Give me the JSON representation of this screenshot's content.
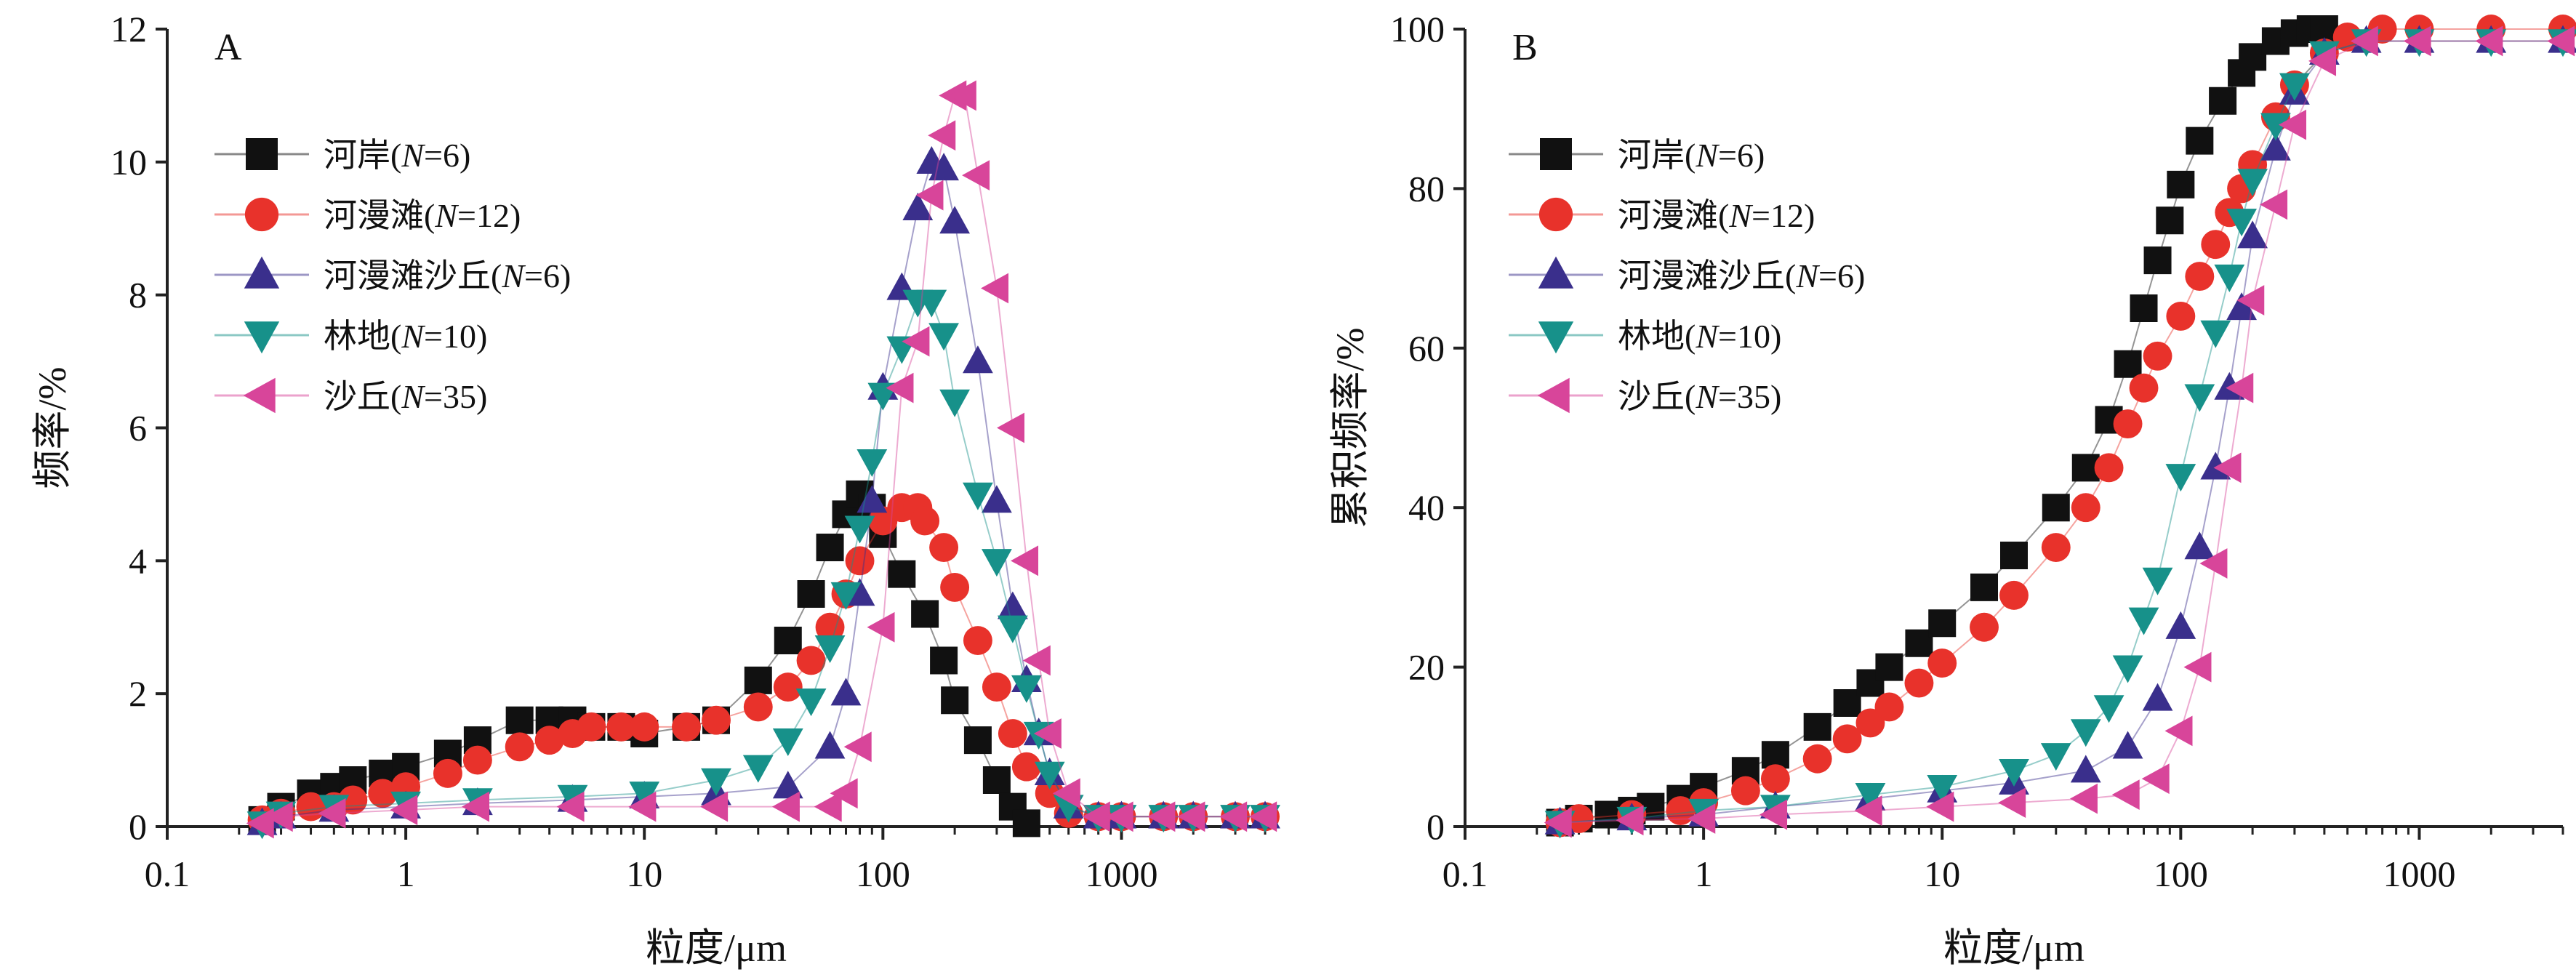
{
  "chart_data": [
    {
      "type": "scatter",
      "panel_label": "A",
      "xlabel": "粒度/μm",
      "ylabel": "频率/%",
      "x_scale": "log",
      "xlim": [
        0.1,
        4000
      ],
      "ylim": [
        0,
        12
      ],
      "x_ticks": [
        "0.1",
        "1",
        "10",
        "100",
        "1000"
      ],
      "y_ticks": [
        "0",
        "2",
        "4",
        "6",
        "8",
        "10",
        "12"
      ],
      "legend_position": "top-left",
      "series": [
        {
          "name": "河岸",
          "n": "6",
          "x": [
            0.25,
            0.3,
            0.4,
            0.5,
            0.6,
            0.8,
            1,
            1.5,
            2,
            3,
            4,
            5,
            6,
            8,
            10,
            15,
            20,
            30,
            40,
            50,
            60,
            70,
            80,
            90,
            100,
            120,
            150,
            180,
            200,
            250,
            300,
            350,
            400
          ],
          "values": [
            0.1,
            0.3,
            0.5,
            0.6,
            0.7,
            0.8,
            0.9,
            1.1,
            1.3,
            1.6,
            1.6,
            1.6,
            1.5,
            1.5,
            1.4,
            1.5,
            1.6,
            2.2,
            2.8,
            3.5,
            4.2,
            4.7,
            5.0,
            4.8,
            4.4,
            3.8,
            3.2,
            2.5,
            1.9,
            1.3,
            0.7,
            0.3,
            0.05
          ]
        },
        {
          "name": "河漫滩",
          "n": "12",
          "x": [
            0.25,
            0.3,
            0.4,
            0.5,
            0.6,
            0.8,
            1,
            1.5,
            2,
            3,
            4,
            5,
            6,
            8,
            10,
            15,
            20,
            30,
            40,
            50,
            60,
            70,
            80,
            100,
            120,
            140,
            150,
            180,
            200,
            250,
            300,
            350,
            400,
            500,
            600,
            800,
            1000,
            1500,
            2000,
            3000,
            4000
          ],
          "values": [
            0.1,
            0.2,
            0.3,
            0.3,
            0.4,
            0.5,
            0.6,
            0.8,
            1.0,
            1.2,
            1.3,
            1.4,
            1.5,
            1.5,
            1.5,
            1.5,
            1.6,
            1.8,
            2.1,
            2.5,
            3.0,
            3.5,
            4.0,
            4.6,
            4.8,
            4.8,
            4.6,
            4.2,
            3.6,
            2.8,
            2.1,
            1.4,
            0.9,
            0.5,
            0.2,
            0.15,
            0.15,
            0.15,
            0.15,
            0.15,
            0.15
          ]
        },
        {
          "name": "河漫滩沙丘",
          "n": "6",
          "x": [
            0.25,
            0.3,
            0.5,
            1,
            2,
            5,
            10,
            20,
            40,
            60,
            70,
            80,
            90,
            100,
            120,
            140,
            160,
            180,
            200,
            250,
            300,
            350,
            400,
            450,
            500,
            600,
            800,
            1000,
            1500,
            2000,
            3000,
            4000
          ],
          "values": [
            0.05,
            0.15,
            0.25,
            0.3,
            0.35,
            0.4,
            0.45,
            0.5,
            0.6,
            1.2,
            2.0,
            3.5,
            4.9,
            6.6,
            8.1,
            9.3,
            10.0,
            9.9,
            9.1,
            7.0,
            4.9,
            3.3,
            2.2,
            1.4,
            0.8,
            0.3,
            0.15,
            0.15,
            0.15,
            0.15,
            0.15,
            0.15
          ]
        },
        {
          "name": "林地",
          "n": "10",
          "x": [
            0.25,
            0.3,
            0.5,
            1,
            2,
            5,
            10,
            20,
            30,
            40,
            50,
            60,
            70,
            80,
            90,
            100,
            120,
            140,
            160,
            180,
            200,
            250,
            300,
            350,
            400,
            450,
            500,
            600,
            800,
            1000,
            1500,
            2000,
            3000,
            4000
          ],
          "values": [
            0.05,
            0.2,
            0.3,
            0.35,
            0.4,
            0.45,
            0.5,
            0.7,
            0.9,
            1.3,
            1.9,
            2.7,
            3.5,
            4.5,
            5.5,
            6.5,
            7.2,
            7.9,
            7.9,
            7.4,
            6.4,
            5.0,
            4.0,
            3.0,
            2.1,
            1.4,
            0.8,
            0.3,
            0.15,
            0.15,
            0.15,
            0.15,
            0.15,
            0.15
          ]
        },
        {
          "name": "沙丘",
          "n": "35",
          "x": [
            0.25,
            0.3,
            0.5,
            1,
            2,
            5,
            10,
            20,
            40,
            60,
            70,
            80,
            100,
            120,
            140,
            160,
            180,
            200,
            220,
            250,
            300,
            350,
            400,
            450,
            500,
            600,
            800,
            1000,
            1500,
            2000,
            3000,
            4000
          ],
          "values": [
            0.05,
            0.15,
            0.2,
            0.25,
            0.3,
            0.3,
            0.3,
            0.3,
            0.3,
            0.3,
            0.5,
            1.2,
            3.0,
            6.6,
            7.3,
            9.5,
            10.4,
            11.0,
            11.0,
            9.8,
            8.1,
            6.0,
            4.0,
            2.5,
            1.4,
            0.5,
            0.15,
            0.15,
            0.15,
            0.15,
            0.15,
            0.15
          ]
        }
      ]
    },
    {
      "type": "scatter",
      "panel_label": "B",
      "xlabel": "粒度/μm",
      "ylabel": "累积频率/%",
      "x_scale": "log",
      "xlim": [
        0.1,
        4000
      ],
      "ylim": [
        0,
        100
      ],
      "x_ticks": [
        "0.1",
        "1",
        "10",
        "100",
        "1000"
      ],
      "y_ticks": [
        "0",
        "20",
        "40",
        "60",
        "80",
        "100"
      ],
      "legend_position": "top-left",
      "series": [
        {
          "name": "河岸",
          "n": "6",
          "x": [
            0.25,
            0.3,
            0.4,
            0.5,
            0.6,
            0.8,
            1,
            1.5,
            2,
            3,
            4,
            5,
            6,
            8,
            10,
            15,
            20,
            30,
            40,
            50,
            60,
            70,
            80,
            90,
            100,
            120,
            150,
            180,
            200,
            250,
            300,
            350,
            400
          ],
          "values": [
            0.5,
            1,
            1.5,
            2,
            2.5,
            3.5,
            5,
            7,
            9,
            12.5,
            15.5,
            18,
            20,
            23,
            25.5,
            30,
            34,
            40,
            45,
            51,
            58,
            65,
            71,
            76,
            80.5,
            86,
            91,
            94.5,
            96.5,
            98.5,
            99.5,
            100,
            100
          ]
        },
        {
          "name": "河漫滩",
          "n": "12",
          "x": [
            0.25,
            0.3,
            0.5,
            0.8,
            1,
            1.5,
            2,
            3,
            4,
            5,
            6,
            8,
            10,
            15,
            20,
            30,
            40,
            50,
            60,
            70,
            80,
            100,
            120,
            140,
            160,
            180,
            200,
            250,
            300,
            400,
            500,
            700,
            1000,
            2000,
            4000
          ],
          "values": [
            0.5,
            1,
            1.5,
            2,
            3,
            4.5,
            6,
            8.5,
            11,
            13,
            15,
            18,
            20.5,
            25,
            29,
            35,
            40,
            45,
            50.5,
            55,
            59,
            64,
            69,
            73,
            77,
            80,
            83,
            89,
            93,
            97,
            99,
            100,
            100,
            100,
            100
          ]
        },
        {
          "name": "河漫滩沙丘",
          "n": "6",
          "x": [
            0.25,
            0.5,
            1,
            2,
            5,
            10,
            20,
            40,
            60,
            80,
            100,
            120,
            140,
            160,
            180,
            200,
            250,
            300,
            400,
            600,
            1000,
            2000,
            4000
          ],
          "values": [
            0.5,
            1,
            1.5,
            2.5,
            3.5,
            4.5,
            5.5,
            7,
            10,
            16,
            25,
            35,
            45,
            55,
            65,
            74,
            85,
            92,
            97,
            98.5,
            98.5,
            98.5,
            98.5
          ]
        },
        {
          "name": "林地",
          "n": "10",
          "x": [
            0.25,
            0.5,
            1,
            2,
            5,
            10,
            20,
            30,
            40,
            50,
            60,
            70,
            80,
            100,
            120,
            140,
            160,
            180,
            200,
            250,
            300,
            400,
            600,
            1000,
            2000,
            4000
          ],
          "values": [
            0.5,
            1,
            2,
            2.5,
            4,
            5,
            7,
            9,
            12,
            15,
            20,
            26,
            31,
            44,
            54,
            62,
            69,
            76,
            81,
            88,
            93,
            97,
            98.5,
            98.5,
            98.5,
            98.5
          ]
        },
        {
          "name": "沙丘",
          "n": "35",
          "x": [
            0.25,
            0.5,
            1,
            2,
            5,
            10,
            20,
            40,
            60,
            80,
            100,
            120,
            140,
            160,
            180,
            200,
            250,
            300,
            400,
            600,
            1000,
            2000,
            4000
          ],
          "values": [
            0.5,
            0.8,
            1,
            1.5,
            2,
            2.5,
            3,
            3.5,
            4,
            6,
            12,
            20,
            33,
            45,
            55,
            66,
            78,
            88,
            96,
            98.5,
            98.5,
            98.5,
            98.5
          ]
        }
      ]
    }
  ],
  "series_styles": [
    {
      "marker": "square",
      "color": "#111111"
    },
    {
      "marker": "circle",
      "color": "#e8322b"
    },
    {
      "marker": "triangle-up",
      "color": "#3a2f8c"
    },
    {
      "marker": "triangle-down",
      "color": "#17918a"
    },
    {
      "marker": "triangle-left",
      "color": "#d8459a"
    }
  ]
}
